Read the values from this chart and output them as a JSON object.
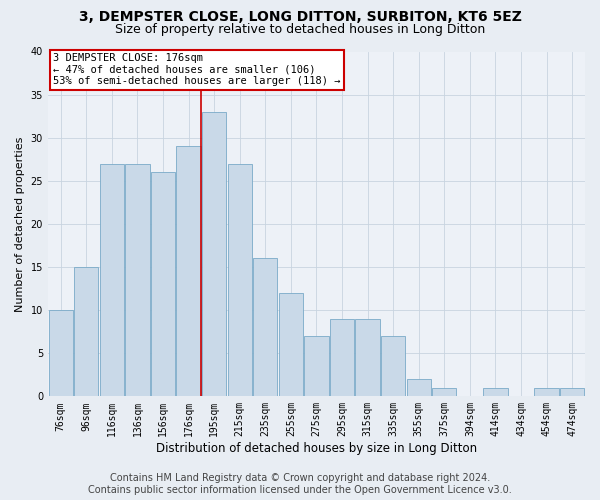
{
  "title": "3, DEMPSTER CLOSE, LONG DITTON, SURBITON, KT6 5EZ",
  "subtitle": "Size of property relative to detached houses in Long Ditton",
  "xlabel": "Distribution of detached houses by size in Long Ditton",
  "ylabel": "Number of detached properties",
  "footer_line1": "Contains HM Land Registry data © Crown copyright and database right 2024.",
  "footer_line2": "Contains public sector information licensed under the Open Government Licence v3.0.",
  "bin_labels": [
    "76sqm",
    "96sqm",
    "116sqm",
    "136sqm",
    "156sqm",
    "176sqm",
    "195sqm",
    "215sqm",
    "235sqm",
    "255sqm",
    "275sqm",
    "295sqm",
    "315sqm",
    "335sqm",
    "355sqm",
    "375sqm",
    "394sqm",
    "414sqm",
    "434sqm",
    "454sqm",
    "474sqm"
  ],
  "bar_values": [
    10,
    15,
    27,
    27,
    26,
    29,
    33,
    27,
    16,
    12,
    7,
    9,
    9,
    7,
    2,
    1,
    0,
    1,
    0,
    1,
    1
  ],
  "bar_color": "#c9d9e8",
  "bar_edge_color": "#7aaac8",
  "vline_x": 5.5,
  "vline_color": "#cc0000",
  "annotation_text": "3 DEMPSTER CLOSE: 176sqm\n← 47% of detached houses are smaller (106)\n53% of semi-detached houses are larger (118) →",
  "annotation_box_color": "white",
  "annotation_box_edge": "#cc0000",
  "ylim": [
    0,
    40
  ],
  "yticks": [
    0,
    5,
    10,
    15,
    20,
    25,
    30,
    35,
    40
  ],
  "background_color": "#e8edf3",
  "plot_background": "#edf1f7",
  "grid_color": "#c8d4e0",
  "title_fontsize": 10,
  "subtitle_fontsize": 9,
  "xlabel_fontsize": 8.5,
  "ylabel_fontsize": 8,
  "tick_fontsize": 7,
  "annot_fontsize": 7.5,
  "footer_fontsize": 7
}
